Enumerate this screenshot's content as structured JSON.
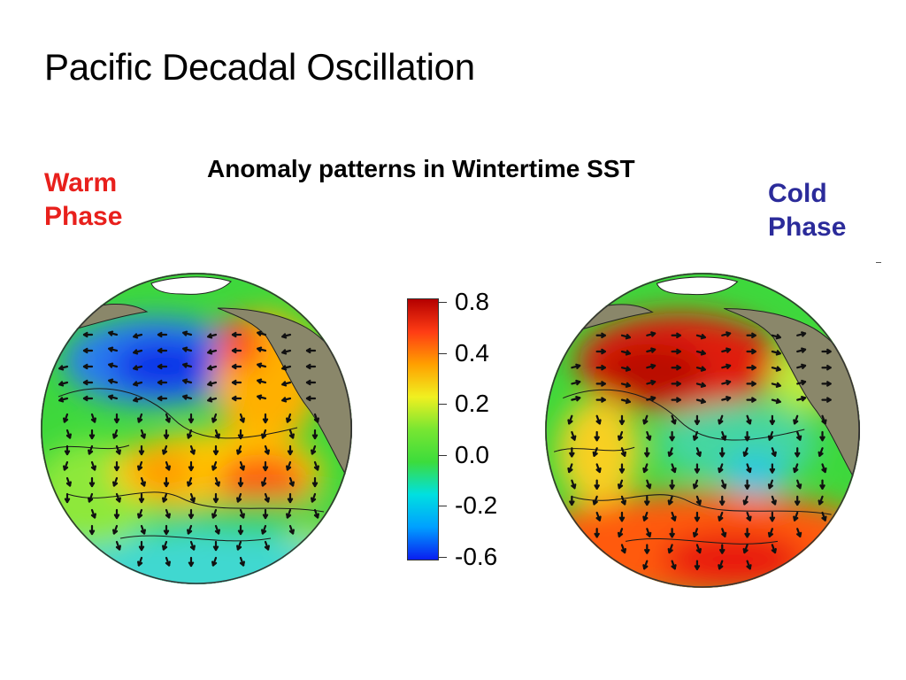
{
  "slide": {
    "title": "Pacific Decadal Oscillation",
    "subtitle": "Anomaly patterns in Wintertime SST",
    "warm_phase": {
      "line1": "Warm",
      "line2": "Phase",
      "color": "#e8201c"
    },
    "cold_phase": {
      "line1": "Cold",
      "line2": "Phase",
      "color": "#2b2b9a"
    }
  },
  "colorbar": {
    "ticks": [
      "0.8",
      "0.4",
      "0.2",
      "0.0",
      "-0.2",
      "-0.6"
    ],
    "colors": [
      "#0a1ef0",
      "#00a0ff",
      "#00e0e0",
      "#3cdc3c",
      "#78e632",
      "#f0f020",
      "#ffa000",
      "#ff3c14",
      "#b40000"
    ]
  },
  "globes": {
    "warm": {
      "phase": "warm"
    },
    "cold": {
      "phase": "cold"
    }
  }
}
